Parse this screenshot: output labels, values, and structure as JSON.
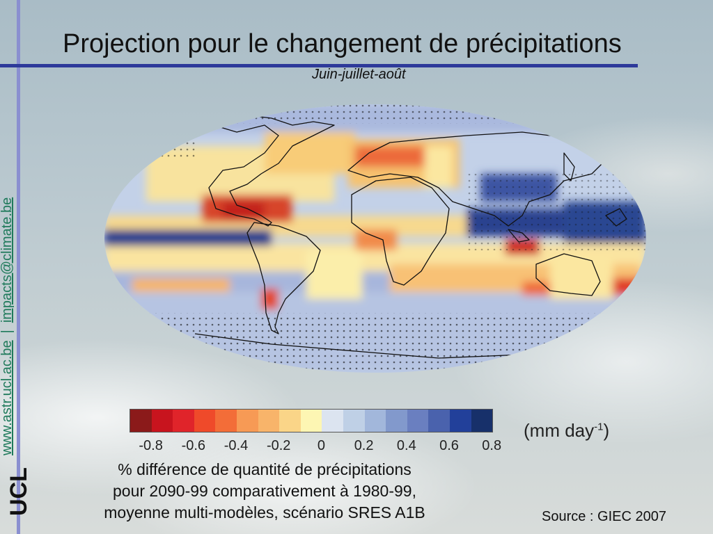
{
  "slide": {
    "title": "Projection pour le changement de précipitations",
    "subtitle": "Juin-juillet-août"
  },
  "sidebar": {
    "link1": "www.astr.ucl.ac.be",
    "link2": "impacts@climate.be",
    "logo_text": "UCL"
  },
  "colorbar": {
    "unit_main": "(mm day",
    "unit_sup": "-1",
    "unit_close": ")",
    "tick_labels": [
      "-0.8",
      "-0.6",
      "-0.4",
      "-0.2",
      "0",
      "0.2",
      "0.4",
      "0.6",
      "0.8"
    ],
    "colors": [
      "#8b1a1a",
      "#c8141e",
      "#e0242a",
      "#ef4a2a",
      "#f36d38",
      "#f79a55",
      "#f8b46a",
      "#fad588",
      "#fdf6b3",
      "#dce4f0",
      "#bfd0e6",
      "#a2b7db",
      "#8299cc",
      "#6a7fc0",
      "#4a62ad",
      "#22409a",
      "#17306a"
    ]
  },
  "caption": {
    "line1": "% différence de quantité de précipitations",
    "line2": "pour 2090-99 comparativement à 1980-99,",
    "line3": "moyenne multi-modèles, scénario SRES A1B"
  },
  "source": "Source : GIEC 2007"
}
